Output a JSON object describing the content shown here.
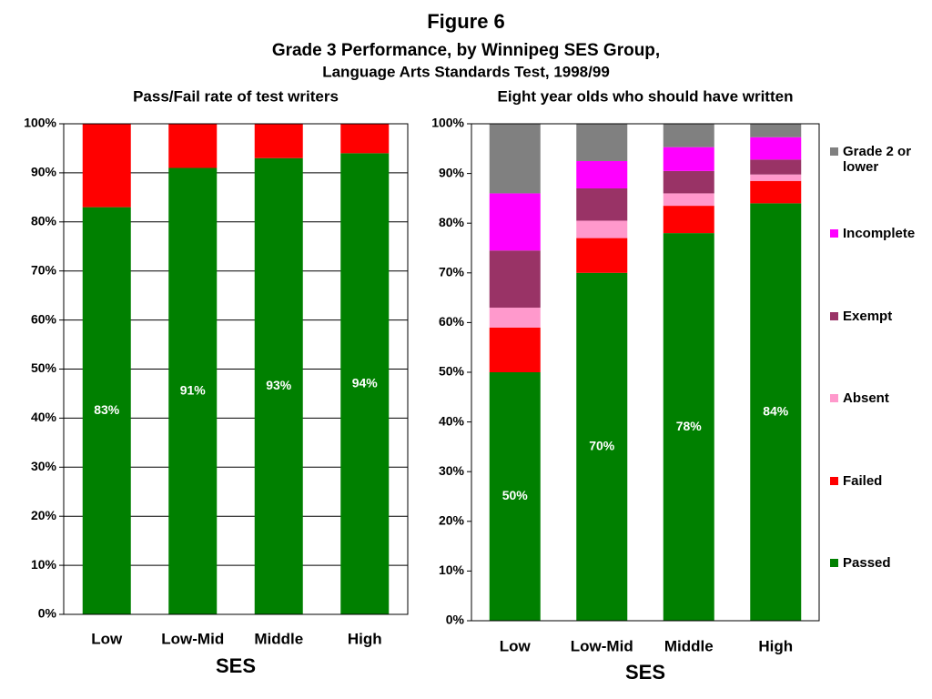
{
  "header": {
    "title": "Figure 6",
    "subtitle": "Grade 3 Performance, by Winnipeg SES Group,",
    "subtitle2": "Language Arts Standards Test, 1998/99"
  },
  "chart_data": [
    {
      "type": "stacked_bar",
      "title": "Pass/Fail rate of test writers",
      "x_label": "SES",
      "categories": [
        "Low",
        "Low-Mid",
        "Middle",
        "High"
      ],
      "series": [
        {
          "color": "#008000",
          "values": [
            83,
            91,
            93,
            94
          ],
          "value_labels": [
            "83%",
            "91%",
            "93%",
            "94%"
          ]
        },
        {
          "color": "#ff0000",
          "values": [
            17,
            9,
            7,
            6
          ]
        }
      ],
      "ylim": [
        0,
        100
      ],
      "yticks": [
        {
          "value": 0,
          "label": "0%"
        },
        {
          "value": 10,
          "label": "10%"
        },
        {
          "value": 20,
          "label": "20%"
        },
        {
          "value": 30,
          "label": "30%"
        },
        {
          "value": 40,
          "label": "40%"
        },
        {
          "value": 50,
          "label": "50%"
        },
        {
          "value": 60,
          "label": "60%"
        },
        {
          "value": 70,
          "label": "70%"
        },
        {
          "value": 80,
          "label": "80%"
        },
        {
          "value": 90,
          "label": "90%"
        },
        {
          "value": 100,
          "label": "100%"
        }
      ],
      "grid": true
    },
    {
      "type": "stacked_bar",
      "title": "Eight year olds who should have written",
      "x_label": "SES",
      "categories": [
        "Low",
        "Low-Mid",
        "Middle",
        "High"
      ],
      "series": [
        {
          "name": "Passed",
          "color": "#008000",
          "values": [
            50,
            70,
            78,
            84
          ],
          "value_labels": [
            "50%",
            "70%",
            "78%",
            "84%"
          ]
        },
        {
          "name": "Failed",
          "color": "#ff0000",
          "values": [
            9,
            7,
            5.5,
            4.5
          ]
        },
        {
          "name": "Absent",
          "color": "#ff99cc",
          "values": [
            4,
            3.5,
            2.5,
            1.3
          ]
        },
        {
          "name": "Exempt",
          "color": "#993366",
          "values": [
            11.5,
            6.5,
            4.5,
            3
          ]
        },
        {
          "name": "Incomplete",
          "color": "#ff00ff",
          "values": [
            11.5,
            5.5,
            4.8,
            4.5
          ]
        },
        {
          "name": "Grade 2 or lower",
          "color": "#808080",
          "values": [
            14,
            7.5,
            4.7,
            2.7
          ]
        }
      ],
      "ylim": [
        0,
        100
      ],
      "yticks": [
        {
          "value": 0,
          "label": "0%"
        },
        {
          "value": 10,
          "label": "10%"
        },
        {
          "value": 20,
          "label": "20%"
        },
        {
          "value": 30,
          "label": "30%"
        },
        {
          "value": 40,
          "label": "40%"
        },
        {
          "value": 50,
          "label": "50%"
        },
        {
          "value": 60,
          "label": "60%"
        },
        {
          "value": 70,
          "label": "70%"
        },
        {
          "value": 80,
          "label": "80%"
        },
        {
          "value": 90,
          "label": "90%"
        },
        {
          "value": 100,
          "label": "100%"
        }
      ],
      "grid": false,
      "legend": "right"
    }
  ]
}
